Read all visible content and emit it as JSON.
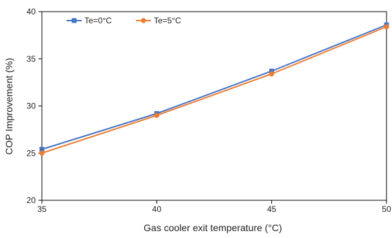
{
  "chart_data": {
    "type": "line",
    "title": "",
    "xlabel": "Gas cooler exit temperature (°C)",
    "ylabel": "COP Improvement (%)",
    "xlim": [
      35,
      50
    ],
    "ylim": [
      20,
      40
    ],
    "x_ticks": [
      "35",
      "40",
      "45",
      "50"
    ],
    "y_ticks": [
      "20",
      "25",
      "30",
      "35",
      "40"
    ],
    "grid": false,
    "legend_position": "top-left",
    "x": [
      35,
      40,
      45,
      50
    ],
    "series": [
      {
        "name": "Te=0°C",
        "values": [
          25.4,
          29.2,
          33.7,
          38.6
        ],
        "color": "#4472C4",
        "marker": "square"
      },
      {
        "name": "Te=5°C",
        "values": [
          25.0,
          29.0,
          33.4,
          38.4
        ],
        "color": "#ED7D31",
        "marker": "circle"
      }
    ]
  }
}
